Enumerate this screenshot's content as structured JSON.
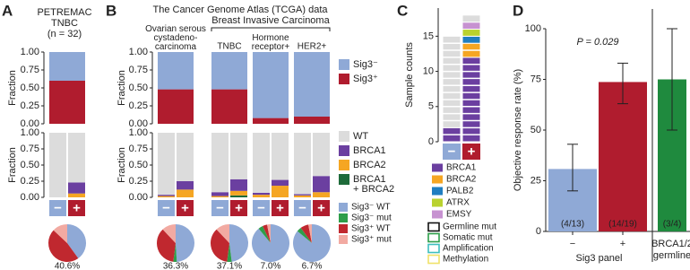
{
  "panel_labels": [
    "A",
    "B",
    "C",
    "D"
  ],
  "chart_data": [
    {
      "type": "stacked_bar",
      "title": "PETREMAC\nTNBC\n(n = 32)",
      "ylabel": "Fraction",
      "ylim": [
        0,
        1
      ],
      "yticks": [
        {
          "value": 0,
          "label": "0.00"
        },
        {
          "value": 0.25,
          "label": "0.25"
        },
        {
          "value": 0.5,
          "label": "0.50"
        },
        {
          "value": 0.75,
          "label": "0.75"
        },
        {
          "value": 1,
          "label": "1.00"
        }
      ],
      "categories": [
        null
      ],
      "series": [
        {
          "color": "#8fa9d6",
          "values": [
            0.4
          ]
        },
        {
          "color": "#b01c2e",
          "values": [
            0.6
          ]
        }
      ]
    },
    {
      "type": "stacked_bar",
      "ylabel": "Fraction",
      "ylim": [
        0,
        1
      ],
      "yticks": [
        {
          "value": 0,
          "label": "0.00"
        },
        {
          "value": 0.25,
          "label": "0.25"
        },
        {
          "value": 0.5,
          "label": "0.50"
        },
        {
          "value": 0.75,
          "label": "0.75"
        },
        {
          "value": 1,
          "label": "1.00"
        }
      ],
      "categories": [
        "−",
        "+"
      ],
      "series": [
        {
          "color": "#dcdcdc",
          "values": [
            1.0,
            0.77
          ]
        },
        {
          "color": "#6b3fa0",
          "values": [
            0,
            0.17
          ]
        },
        {
          "color": "#f5a623",
          "values": [
            0,
            0.06
          ]
        },
        {
          "color": "#1e6b3a",
          "values": [
            0,
            0
          ]
        }
      ]
    },
    {
      "type": "pie",
      "labels": [
        "40.6%"
      ],
      "series": [
        {
          "color": "#8fa9d6",
          "values": [
            40
          ]
        },
        {
          "color": "#2e9e4a",
          "values": [
            0
          ]
        },
        {
          "color": "#c0282f",
          "values": [
            47
          ]
        },
        {
          "color": "#f2aaa2",
          "values": [
            13
          ]
        }
      ]
    },
    {
      "type": "stacked_bar",
      "title": "The Cancer Genome Atlas (TCGA) data",
      "group_label": "Breast Invasive Carcinoma",
      "ylabel": "Fraction",
      "ylim": [
        0,
        1
      ],
      "yticks": [
        {
          "value": 0,
          "label": "0.00"
        },
        {
          "value": 0.25,
          "label": "0.25"
        },
        {
          "value": 0.5,
          "label": "0.50"
        },
        {
          "value": 0.75,
          "label": "0.75"
        },
        {
          "value": 1,
          "label": "1.00"
        }
      ],
      "categories": [
        "Ovarian serous\ncystadeno-\ncarcinoma",
        "TNBC",
        "Hormone\nreceptor+",
        "HER2+"
      ],
      "series": [
        {
          "name": "Sig3⁻",
          "color": "#8fa9d6",
          "values": [
            0.52,
            0.52,
            0.92,
            0.9
          ]
        },
        {
          "name": "Sig3⁺",
          "color": "#b01c2e",
          "values": [
            0.48,
            0.48,
            0.08,
            0.1
          ]
        }
      ],
      "legend": "right"
    },
    {
      "type": "stacked_bar",
      "ylabel": "Fraction",
      "ylim": [
        0,
        1
      ],
      "yticks": [
        {
          "value": 0,
          "label": "0.00"
        },
        {
          "value": 0.25,
          "label": "0.25"
        },
        {
          "value": 0.5,
          "label": "0.50"
        },
        {
          "value": 0.75,
          "label": "0.75"
        },
        {
          "value": 1,
          "label": "1.00"
        }
      ],
      "categories": [
        "−",
        "+",
        "−",
        "+",
        "−",
        "+",
        "−",
        "+"
      ],
      "series": [
        {
          "name": "WT",
          "color": "#dcdcdc",
          "values": [
            0.96,
            0.75,
            0.92,
            0.72,
            0.93,
            0.73,
            0.95,
            0.67
          ]
        },
        {
          "name": "BRCA1",
          "color": "#6b3fa0",
          "values": [
            0.02,
            0.13,
            0.06,
            0.18,
            0.03,
            0.09,
            0.02,
            0.25
          ]
        },
        {
          "name": "BRCA2",
          "color": "#f5a623",
          "values": [
            0.02,
            0.12,
            0.02,
            0.07,
            0.04,
            0.18,
            0.03,
            0.08
          ]
        },
        {
          "name": "BRCA1\n+ BRCA2",
          "color": "#1e6b3a",
          "values": [
            0,
            0,
            0,
            0.03,
            0,
            0,
            0,
            0
          ]
        }
      ],
      "legend": "right"
    },
    {
      "type": "pie",
      "labels": [
        "36.3%",
        "37.1%",
        "7.0%",
        "6.7%"
      ],
      "series": [
        {
          "name": "Sig3⁻ WT",
          "color": "#8fa9d6",
          "values": [
            49,
            48,
            89,
            86
          ]
        },
        {
          "name": "Sig3⁻ mut",
          "color": "#2e9e4a",
          "values": [
            3,
            4,
            4,
            4
          ]
        },
        {
          "name": "Sig3⁺ WT",
          "color": "#c0282f",
          "values": [
            36,
            36,
            4,
            7
          ]
        },
        {
          "name": "Sig3⁺ mut",
          "color": "#f2aaa2",
          "values": [
            12,
            12,
            3,
            3
          ]
        }
      ],
      "legend": "right"
    },
    {
      "type": "waffle",
      "ylabel": "Sample counts",
      "ylim": [
        0,
        19
      ],
      "yticks": [
        0,
        5,
        10,
        15
      ],
      "categories": [
        "−",
        "+"
      ],
      "series": [
        {
          "name": "BRCA1",
          "color": "#6b3fa0",
          "values": [
            2,
            12
          ]
        },
        {
          "name": "BRCA2",
          "color": "#f5a623",
          "values": [
            0,
            2
          ]
        },
        {
          "name": "PALB2",
          "color": "#1f7ec1",
          "values": [
            0,
            1
          ]
        },
        {
          "name": "ATRX",
          "color": "#b9d22f",
          "values": [
            0,
            1
          ]
        },
        {
          "name": "EMSY",
          "color": "#c792d1",
          "values": [
            0,
            1
          ]
        }
      ],
      "wt_values": [
        13,
        1
      ],
      "wt_color": "#dcdcdc",
      "alteration_types": [
        {
          "label": "Germline mut",
          "color": "#111111"
        },
        {
          "label": "Somatic mut",
          "color": "#2e9e4a"
        },
        {
          "label": "Amplification",
          "color": "#3fbfbf"
        },
        {
          "label": "Methylation",
          "color": "#f0e26a"
        }
      ]
    },
    {
      "type": "bar",
      "ylabel": "Objective response rate (%)",
      "ylim": [
        0,
        100
      ],
      "yticks": [
        0,
        25,
        50,
        75,
        100
      ],
      "xlabel": "Sig3 panel",
      "categories": [
        "−",
        "+"
      ],
      "values": [
        30.8,
        73.7
      ],
      "colors": [
        "#8fa9d6",
        "#b01c2e"
      ],
      "err_low": [
        20,
        63
      ],
      "err_high": [
        43,
        83
      ],
      "count_labels": [
        "(4/13)",
        "(14/19)"
      ],
      "annotation": "P = 0.029"
    },
    {
      "type": "bar",
      "ylim": [
        0,
        100
      ],
      "categories": [
        "BRCA1/2\ngermline"
      ],
      "values": [
        75
      ],
      "colors": [
        "#1f8a3e"
      ],
      "err_low": [
        50
      ],
      "err_high": [
        100
      ],
      "count_labels": [
        "(3/4)"
      ]
    }
  ]
}
